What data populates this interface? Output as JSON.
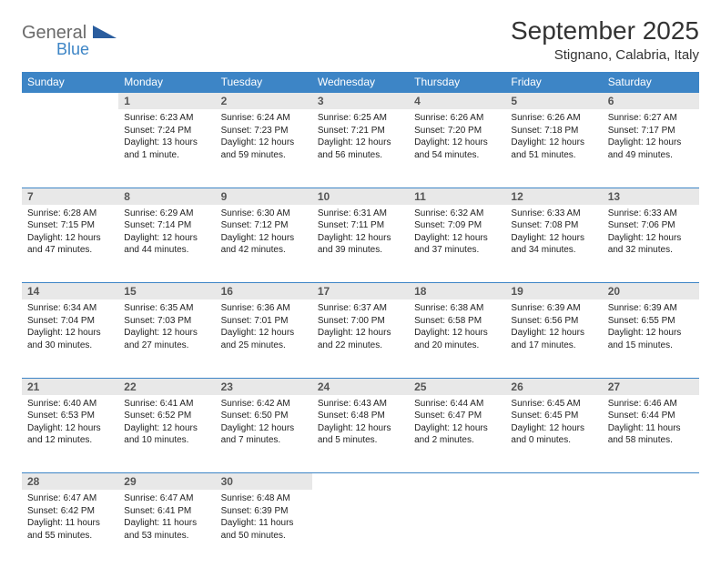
{
  "brand": {
    "text1": "General",
    "text2": "Blue",
    "text1_color": "#6a6a6a",
    "text2_color": "#3d85c6",
    "triangle_color": "#2a5d9e"
  },
  "title": "September 2025",
  "location": "Stignano, Calabria, Italy",
  "colors": {
    "header_bg": "#3d85c6",
    "daynum_bg": "#e8e8e8",
    "border": "#3d85c6"
  },
  "weekdays": [
    "Sunday",
    "Monday",
    "Tuesday",
    "Wednesday",
    "Thursday",
    "Friday",
    "Saturday"
  ],
  "start_offset": 1,
  "days": [
    {
      "n": 1,
      "sr": "6:23 AM",
      "ss": "7:24 PM",
      "dl": "13 hours and 1 minute."
    },
    {
      "n": 2,
      "sr": "6:24 AM",
      "ss": "7:23 PM",
      "dl": "12 hours and 59 minutes."
    },
    {
      "n": 3,
      "sr": "6:25 AM",
      "ss": "7:21 PM",
      "dl": "12 hours and 56 minutes."
    },
    {
      "n": 4,
      "sr": "6:26 AM",
      "ss": "7:20 PM",
      "dl": "12 hours and 54 minutes."
    },
    {
      "n": 5,
      "sr": "6:26 AM",
      "ss": "7:18 PM",
      "dl": "12 hours and 51 minutes."
    },
    {
      "n": 6,
      "sr": "6:27 AM",
      "ss": "7:17 PM",
      "dl": "12 hours and 49 minutes."
    },
    {
      "n": 7,
      "sr": "6:28 AM",
      "ss": "7:15 PM",
      "dl": "12 hours and 47 minutes."
    },
    {
      "n": 8,
      "sr": "6:29 AM",
      "ss": "7:14 PM",
      "dl": "12 hours and 44 minutes."
    },
    {
      "n": 9,
      "sr": "6:30 AM",
      "ss": "7:12 PM",
      "dl": "12 hours and 42 minutes."
    },
    {
      "n": 10,
      "sr": "6:31 AM",
      "ss": "7:11 PM",
      "dl": "12 hours and 39 minutes."
    },
    {
      "n": 11,
      "sr": "6:32 AM",
      "ss": "7:09 PM",
      "dl": "12 hours and 37 minutes."
    },
    {
      "n": 12,
      "sr": "6:33 AM",
      "ss": "7:08 PM",
      "dl": "12 hours and 34 minutes."
    },
    {
      "n": 13,
      "sr": "6:33 AM",
      "ss": "7:06 PM",
      "dl": "12 hours and 32 minutes."
    },
    {
      "n": 14,
      "sr": "6:34 AM",
      "ss": "7:04 PM",
      "dl": "12 hours and 30 minutes."
    },
    {
      "n": 15,
      "sr": "6:35 AM",
      "ss": "7:03 PM",
      "dl": "12 hours and 27 minutes."
    },
    {
      "n": 16,
      "sr": "6:36 AM",
      "ss": "7:01 PM",
      "dl": "12 hours and 25 minutes."
    },
    {
      "n": 17,
      "sr": "6:37 AM",
      "ss": "7:00 PM",
      "dl": "12 hours and 22 minutes."
    },
    {
      "n": 18,
      "sr": "6:38 AM",
      "ss": "6:58 PM",
      "dl": "12 hours and 20 minutes."
    },
    {
      "n": 19,
      "sr": "6:39 AM",
      "ss": "6:56 PM",
      "dl": "12 hours and 17 minutes."
    },
    {
      "n": 20,
      "sr": "6:39 AM",
      "ss": "6:55 PM",
      "dl": "12 hours and 15 minutes."
    },
    {
      "n": 21,
      "sr": "6:40 AM",
      "ss": "6:53 PM",
      "dl": "12 hours and 12 minutes."
    },
    {
      "n": 22,
      "sr": "6:41 AM",
      "ss": "6:52 PM",
      "dl": "12 hours and 10 minutes."
    },
    {
      "n": 23,
      "sr": "6:42 AM",
      "ss": "6:50 PM",
      "dl": "12 hours and 7 minutes."
    },
    {
      "n": 24,
      "sr": "6:43 AM",
      "ss": "6:48 PM",
      "dl": "12 hours and 5 minutes."
    },
    {
      "n": 25,
      "sr": "6:44 AM",
      "ss": "6:47 PM",
      "dl": "12 hours and 2 minutes."
    },
    {
      "n": 26,
      "sr": "6:45 AM",
      "ss": "6:45 PM",
      "dl": "12 hours and 0 minutes."
    },
    {
      "n": 27,
      "sr": "6:46 AM",
      "ss": "6:44 PM",
      "dl": "11 hours and 58 minutes."
    },
    {
      "n": 28,
      "sr": "6:47 AM",
      "ss": "6:42 PM",
      "dl": "11 hours and 55 minutes."
    },
    {
      "n": 29,
      "sr": "6:47 AM",
      "ss": "6:41 PM",
      "dl": "11 hours and 53 minutes."
    },
    {
      "n": 30,
      "sr": "6:48 AM",
      "ss": "6:39 PM",
      "dl": "11 hours and 50 minutes."
    }
  ],
  "labels": {
    "sunrise": "Sunrise:",
    "sunset": "Sunset:",
    "daylight": "Daylight:"
  }
}
